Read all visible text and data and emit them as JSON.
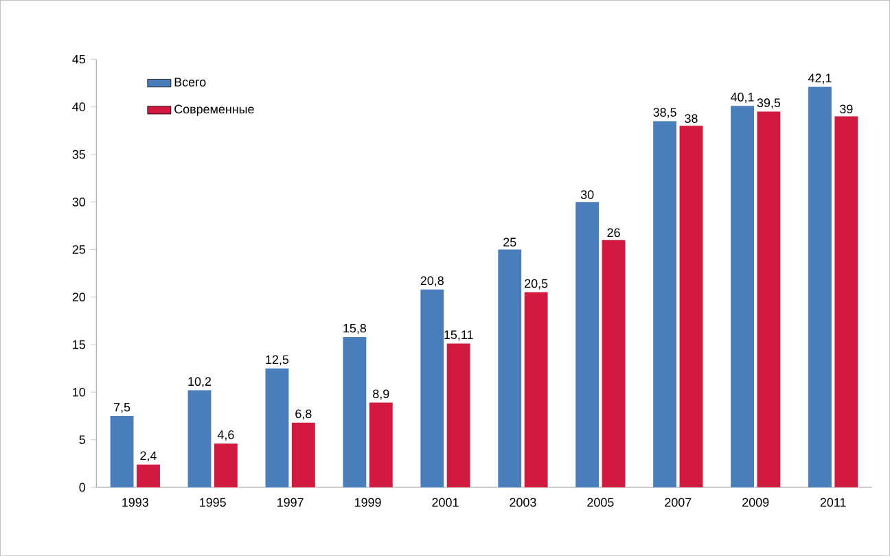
{
  "chart_data": {
    "type": "bar",
    "categories": [
      "1993",
      "1995",
      "1997",
      "1999",
      "2001",
      "2003",
      "2005",
      "2007",
      "2009",
      "2011"
    ],
    "series": [
      {
        "name": "Всего",
        "color": "#4a7ebb",
        "values": [
          7.5,
          10.2,
          12.5,
          15.8,
          20.8,
          25,
          30,
          38.5,
          40.1,
          42.1
        ],
        "value_labels": [
          "7,5",
          "10,2",
          "12,5",
          "15,8",
          "20,8",
          "25",
          "30",
          "38,5",
          "40,1",
          "42,1"
        ]
      },
      {
        "name": "Современные",
        "color": "#d2193f",
        "values": [
          2.4,
          4.6,
          6.8,
          8.9,
          15.11,
          20.5,
          26,
          38,
          39.5,
          39
        ],
        "value_labels": [
          "2,4",
          "4,6",
          "6,8",
          "8,9",
          "15,11",
          "20,5",
          "26",
          "38",
          "39,5",
          "39"
        ]
      }
    ],
    "ylim": [
      0,
      45
    ],
    "yticks": [
      0,
      5,
      10,
      15,
      20,
      25,
      30,
      35,
      40,
      45
    ],
    "legend": "top left"
  }
}
